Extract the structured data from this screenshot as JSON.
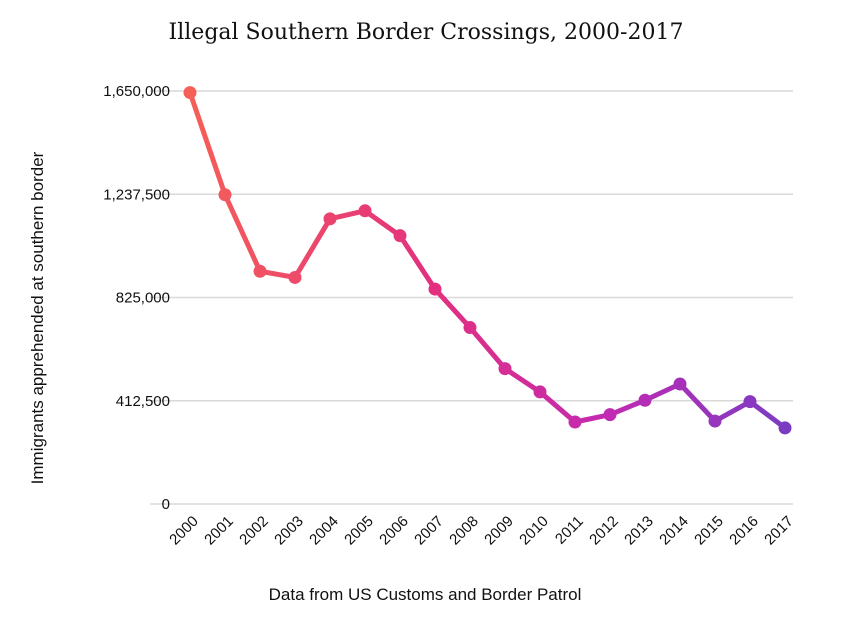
{
  "chart_data": {
    "type": "line",
    "title": "Illegal Southern Border Crossings, 2000-2017",
    "xlabel": "Data from US Customs and Border Patrol",
    "ylabel": "Immigrants apprehended at southern border",
    "categories": [
      "2000",
      "2001",
      "2002",
      "2003",
      "2004",
      "2005",
      "2006",
      "2007",
      "2008",
      "2009",
      "2010",
      "2011",
      "2012",
      "2013",
      "2014",
      "2015",
      "2016",
      "2017"
    ],
    "values": [
      1643679,
      1235718,
      929809,
      905065,
      1139282,
      1171396,
      1071972,
      858638,
      705005,
      540865,
      447731,
      327577,
      356873,
      414397,
      479371,
      331333,
      408870,
      303916
    ],
    "ylim": [
      0,
      1650000
    ],
    "yticks": [
      0,
      412500,
      825000,
      1237500,
      1650000
    ],
    "ytick_labels": [
      "0",
      "412,500",
      "825,000",
      "1,237,500",
      "1,650,000"
    ],
    "grid": true,
    "colors": {
      "start": "#f55f58",
      "mid1": "#e2307f",
      "mid2": "#c22ab2",
      "end": "#7b3cc2",
      "grid": "#d9d9d9"
    }
  }
}
